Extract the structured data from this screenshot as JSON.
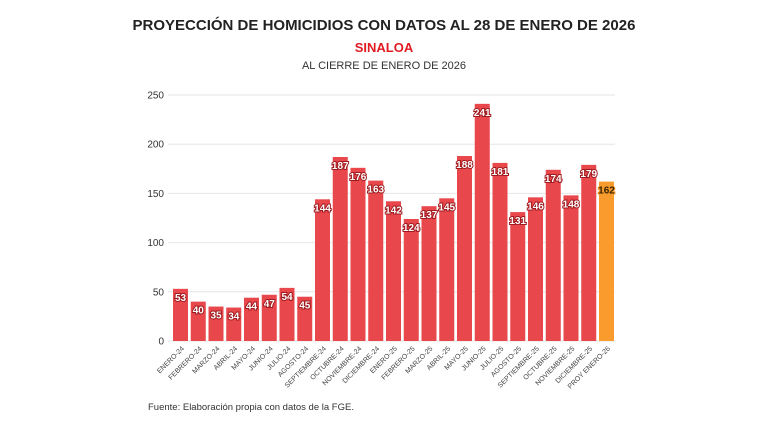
{
  "chart_data": {
    "type": "bar",
    "title": "PROYECCIÓN DE HOMICIDIOS CON DATOS AL 28 DE ENERO DE 2026",
    "subtitle": "SINALOA",
    "subtitle2": "AL CIERRE DE ENERO DE 2026",
    "source": "Fuente: Elaboración propia con datos de la FGE.",
    "categories": [
      "ENERO-24",
      "FEBRERO-24",
      "MARZO-24",
      "ABRIL-24",
      "MAYO-24",
      "JUNIO-24",
      "JULIO-24",
      "AGOSTO-24",
      "SEPTIEMBRE-24",
      "OCTUBRE-24",
      "NOVIEMBRE-24",
      "DICIEMBRE-24",
      "ENERO-25",
      "FEBRERO-25",
      "MARZO-25",
      "ABRIL-25",
      "MAYO-25",
      "JUNIO-25",
      "JULIO-25",
      "AGOSTO-25",
      "SEPTIEMBRE-25",
      "OCTUBRE-25",
      "NOVIEMBRE-25",
      "DICIEMBRE-25",
      "PROY ENERO-26"
    ],
    "values": [
      53,
      40,
      35,
      34,
      44,
      47,
      54,
      45,
      144,
      187,
      176,
      163,
      142,
      124,
      137,
      145,
      188,
      241,
      181,
      131,
      146,
      174,
      148,
      179,
      162
    ],
    "xlabel": "",
    "ylabel": "",
    "ylim": [
      0,
      250
    ],
    "yticks": [
      0,
      50,
      100,
      150,
      200,
      250
    ],
    "grid": true,
    "colors": {
      "actual": "#e8474b",
      "projection": "#f99b2d",
      "label_outline": "#9e1a1f"
    }
  }
}
